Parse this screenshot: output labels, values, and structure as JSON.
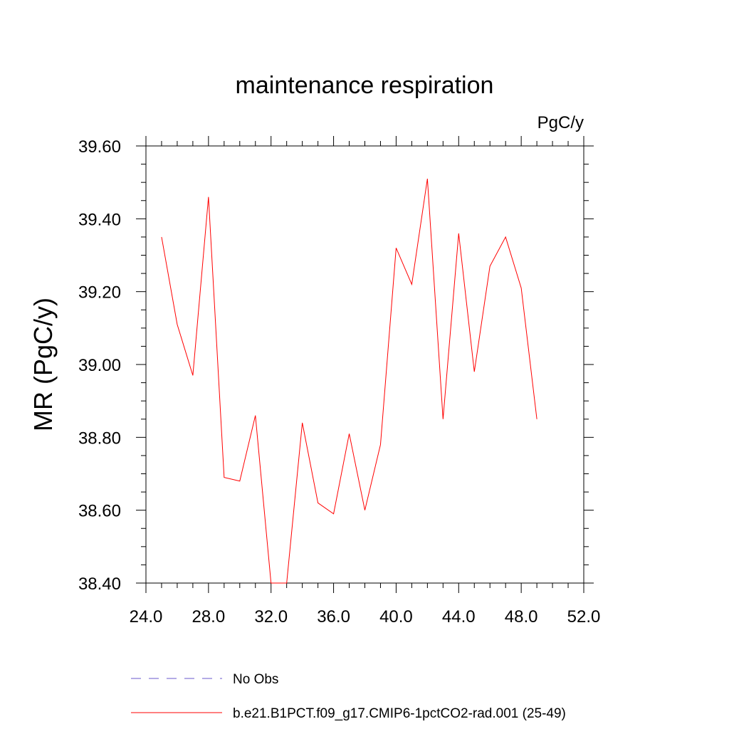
{
  "chart_data": {
    "type": "line",
    "title": "maintenance respiration",
    "units_label": "PgC/y",
    "ylabel": "MR  (PgC/y)",
    "xlabel": "",
    "xlim": [
      24.0,
      52.0
    ],
    "ylim": [
      38.4,
      39.6
    ],
    "xticks": [
      24.0,
      28.0,
      32.0,
      36.0,
      40.0,
      44.0,
      48.0,
      52.0
    ],
    "xtick_labels": [
      "24.0",
      "28.0",
      "32.0",
      "36.0",
      "40.0",
      "44.0",
      "48.0",
      "52.0"
    ],
    "yticks": [
      38.4,
      38.6,
      38.8,
      39.0,
      39.2,
      39.4,
      39.6
    ],
    "ytick_labels": [
      "38.40",
      "38.60",
      "38.80",
      "39.00",
      "39.20",
      "39.40",
      "39.60"
    ],
    "x": [
      25,
      26,
      27,
      28,
      29,
      30,
      31,
      32,
      33,
      34,
      35,
      36,
      37,
      38,
      39,
      40,
      41,
      42,
      43,
      44,
      45,
      46,
      47,
      48,
      49
    ],
    "series": [
      {
        "name": "b.e21.B1PCT.f09_g17.CMIP6-1pctCO2-rad.001 (25-49)",
        "color": "#ff0000",
        "values": [
          39.35,
          39.11,
          38.97,
          39.46,
          38.69,
          38.68,
          38.86,
          38.4,
          38.4,
          38.84,
          38.62,
          38.59,
          38.81,
          38.6,
          38.78,
          39.32,
          39.22,
          39.51,
          38.85,
          39.36,
          38.98,
          39.27,
          39.35,
          39.21,
          38.85
        ]
      }
    ],
    "legend": {
      "placement": "bottom",
      "entries": [
        {
          "label": "No Obs",
          "color": "#6a5acd",
          "style": "dashed"
        },
        {
          "label": "b.e21.B1PCT.f09_g17.CMIP6-1pctCO2-rad.001 (25-49)",
          "color": "#ff0000",
          "style": "solid"
        }
      ]
    }
  }
}
